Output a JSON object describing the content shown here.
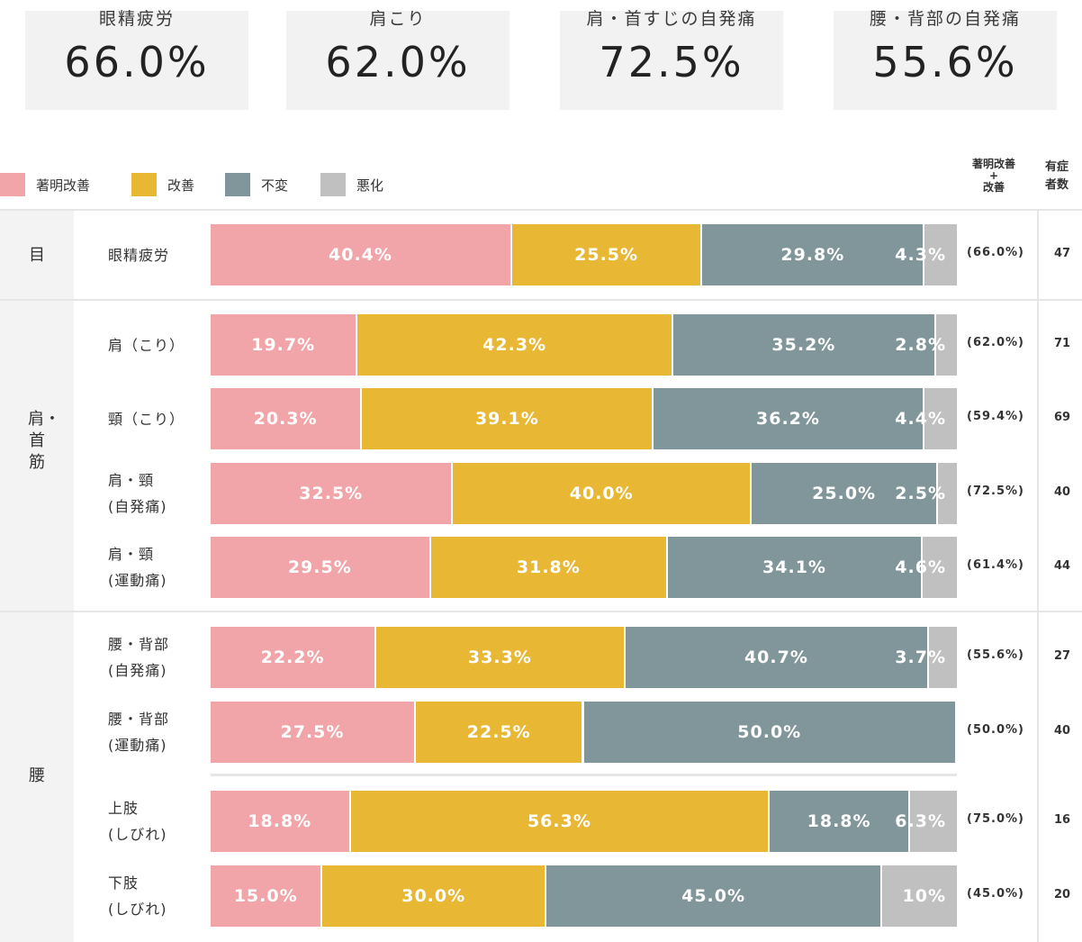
{
  "cards": [
    {
      "label": "眼精疲労",
      "value": "66.0%"
    },
    {
      "label": "肩こり",
      "value": "62.0%"
    },
    {
      "label": "肩・首すじの自発痛",
      "value": "72.5%"
    },
    {
      "label": "腰・背部の自発痛",
      "value": "55.6%"
    }
  ],
  "legend": [
    {
      "label": "著明改善",
      "color": "#f2a5a8"
    },
    {
      "label": "改善",
      "color": "#e8b834"
    },
    {
      "label": "不変",
      "color": "#81969a"
    },
    {
      "label": "悪化",
      "color": "#c0c0c0"
    }
  ],
  "header": {
    "combined_line1": "著明改善",
    "combined_plus": "+",
    "combined_line2": "改善",
    "patients_line1": "有症",
    "patients_line2": "者数"
  },
  "groups": [
    {
      "label": "目"
    },
    {
      "label": "肩・首筋"
    },
    {
      "label": "腰"
    }
  ],
  "chart_data": {
    "type": "bar",
    "stacked": true,
    "orientation": "horizontal",
    "unit": "%",
    "series_names": [
      "著明改善",
      "改善",
      "不変",
      "悪化"
    ],
    "colors": [
      "#f2a5a8",
      "#e8b834",
      "#81969a",
      "#c0c0c0"
    ],
    "rows": [
      {
        "label": "眼精疲労",
        "values": [
          40.4,
          25.5,
          29.8,
          4.3
        ],
        "labels": [
          "40.4%",
          "25.5%",
          "29.8%",
          "4.3%"
        ],
        "combined": "(66.0%)",
        "patients": "47"
      },
      {
        "label": "肩（こり）",
        "values": [
          19.7,
          42.3,
          35.2,
          2.8
        ],
        "labels": [
          "19.7%",
          "42.3%",
          "35.2%",
          "2.8%"
        ],
        "combined": "(62.0%)",
        "patients": "71"
      },
      {
        "label": "頸（こり）",
        "values": [
          20.3,
          39.1,
          36.2,
          4.4
        ],
        "labels": [
          "20.3%",
          "39.1%",
          "36.2%",
          "4.4%"
        ],
        "combined": "(59.4%)",
        "patients": "69"
      },
      {
        "label": "肩・頸\n(自発痛)",
        "values": [
          32.5,
          40.0,
          25.0,
          2.5
        ],
        "labels": [
          "32.5%",
          "40.0%",
          "25.0%",
          "2.5%"
        ],
        "combined": "(72.5%)",
        "patients": "40"
      },
      {
        "label": "肩・頸\n(運動痛)",
        "values": [
          29.5,
          31.8,
          34.1,
          4.6
        ],
        "labels": [
          "29.5%",
          "31.8%",
          "34.1%",
          "4.6%"
        ],
        "combined": "(61.4%)",
        "patients": "44"
      },
      {
        "label": "腰・背部\n(自発痛)",
        "values": [
          22.2,
          33.3,
          40.7,
          3.7
        ],
        "labels": [
          "22.2%",
          "33.3%",
          "40.7%",
          "3.7%"
        ],
        "combined": "(55.6%)",
        "patients": "27"
      },
      {
        "label": "腰・背部\n(運動痛)",
        "values": [
          27.5,
          22.5,
          50.0,
          0
        ],
        "labels": [
          "27.5%",
          "22.5%",
          "50.0%",
          ""
        ],
        "combined": "(50.0%)",
        "patients": "40"
      },
      {
        "label": "上肢\n(しびれ)",
        "values": [
          18.8,
          56.3,
          18.8,
          6.3
        ],
        "labels": [
          "18.8%",
          "56.3%",
          "18.8%",
          "6.3%"
        ],
        "combined": "(75.0%)",
        "patients": "16"
      },
      {
        "label": "下肢\n(しびれ)",
        "values": [
          15.0,
          30.0,
          45.0,
          10.0
        ],
        "labels": [
          "15.0%",
          "30.0%",
          "45.0%",
          "10%"
        ],
        "combined": "(45.0%)",
        "patients": "20"
      }
    ]
  }
}
